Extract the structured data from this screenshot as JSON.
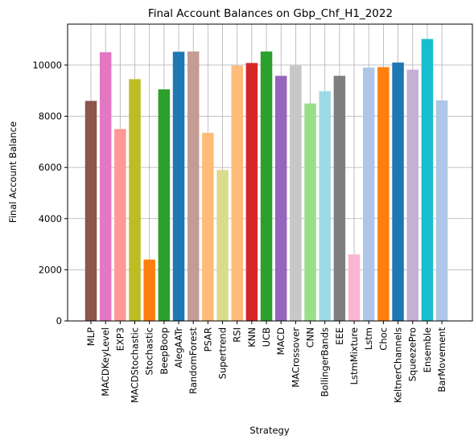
{
  "chart_data": {
    "type": "bar",
    "title": "Final Account Balances on Gbp_Chf_H1_2022",
    "xlabel": "Strategy",
    "ylabel": "Final Account Balance",
    "ylim": [
      0,
      11600
    ],
    "yticks": [
      0,
      2000,
      4000,
      6000,
      8000,
      10000
    ],
    "grid": true,
    "categories": [
      "MLP",
      "MACDKeyLevel",
      "EXP3",
      "MACDStochastic",
      "Stochastic",
      "BeepBoop",
      "AlegAATr",
      "RandomForest",
      "PSAR",
      "Supertrend",
      "RSI",
      "KNN",
      "UCB",
      "MACD",
      "MACrossover",
      "CNN",
      "BollingerBands",
      "EEE",
      "LstmMixture",
      "Lstm",
      "Choc",
      "KeltnerChannels",
      "SqueezePro",
      "Ensemble",
      "BarMovement"
    ],
    "values": [
      8600,
      10500,
      7500,
      9450,
      2400,
      9050,
      10520,
      10530,
      7350,
      5900,
      9980,
      10080,
      10530,
      9580,
      9980,
      8500,
      8980,
      9580,
      2600,
      9900,
      9920,
      10100,
      9820,
      11020,
      8620
    ],
    "colors": [
      "#8c564b",
      "#e377c2",
      "#ff9896",
      "#bcbd22",
      "#ff7f0e",
      "#2ca02c",
      "#1f77b4",
      "#c49c94",
      "#ffbb78",
      "#dbdb8d",
      "#ffbb78",
      "#d62728",
      "#2ca02c",
      "#9467bd",
      "#c7c7c7",
      "#98df8a",
      "#9edae5",
      "#7f7f7f",
      "#f7b6d2",
      "#aec7e8",
      "#ff7f0e",
      "#1f77b4",
      "#c5b0d5",
      "#17becf",
      "#aec7e8"
    ]
  }
}
